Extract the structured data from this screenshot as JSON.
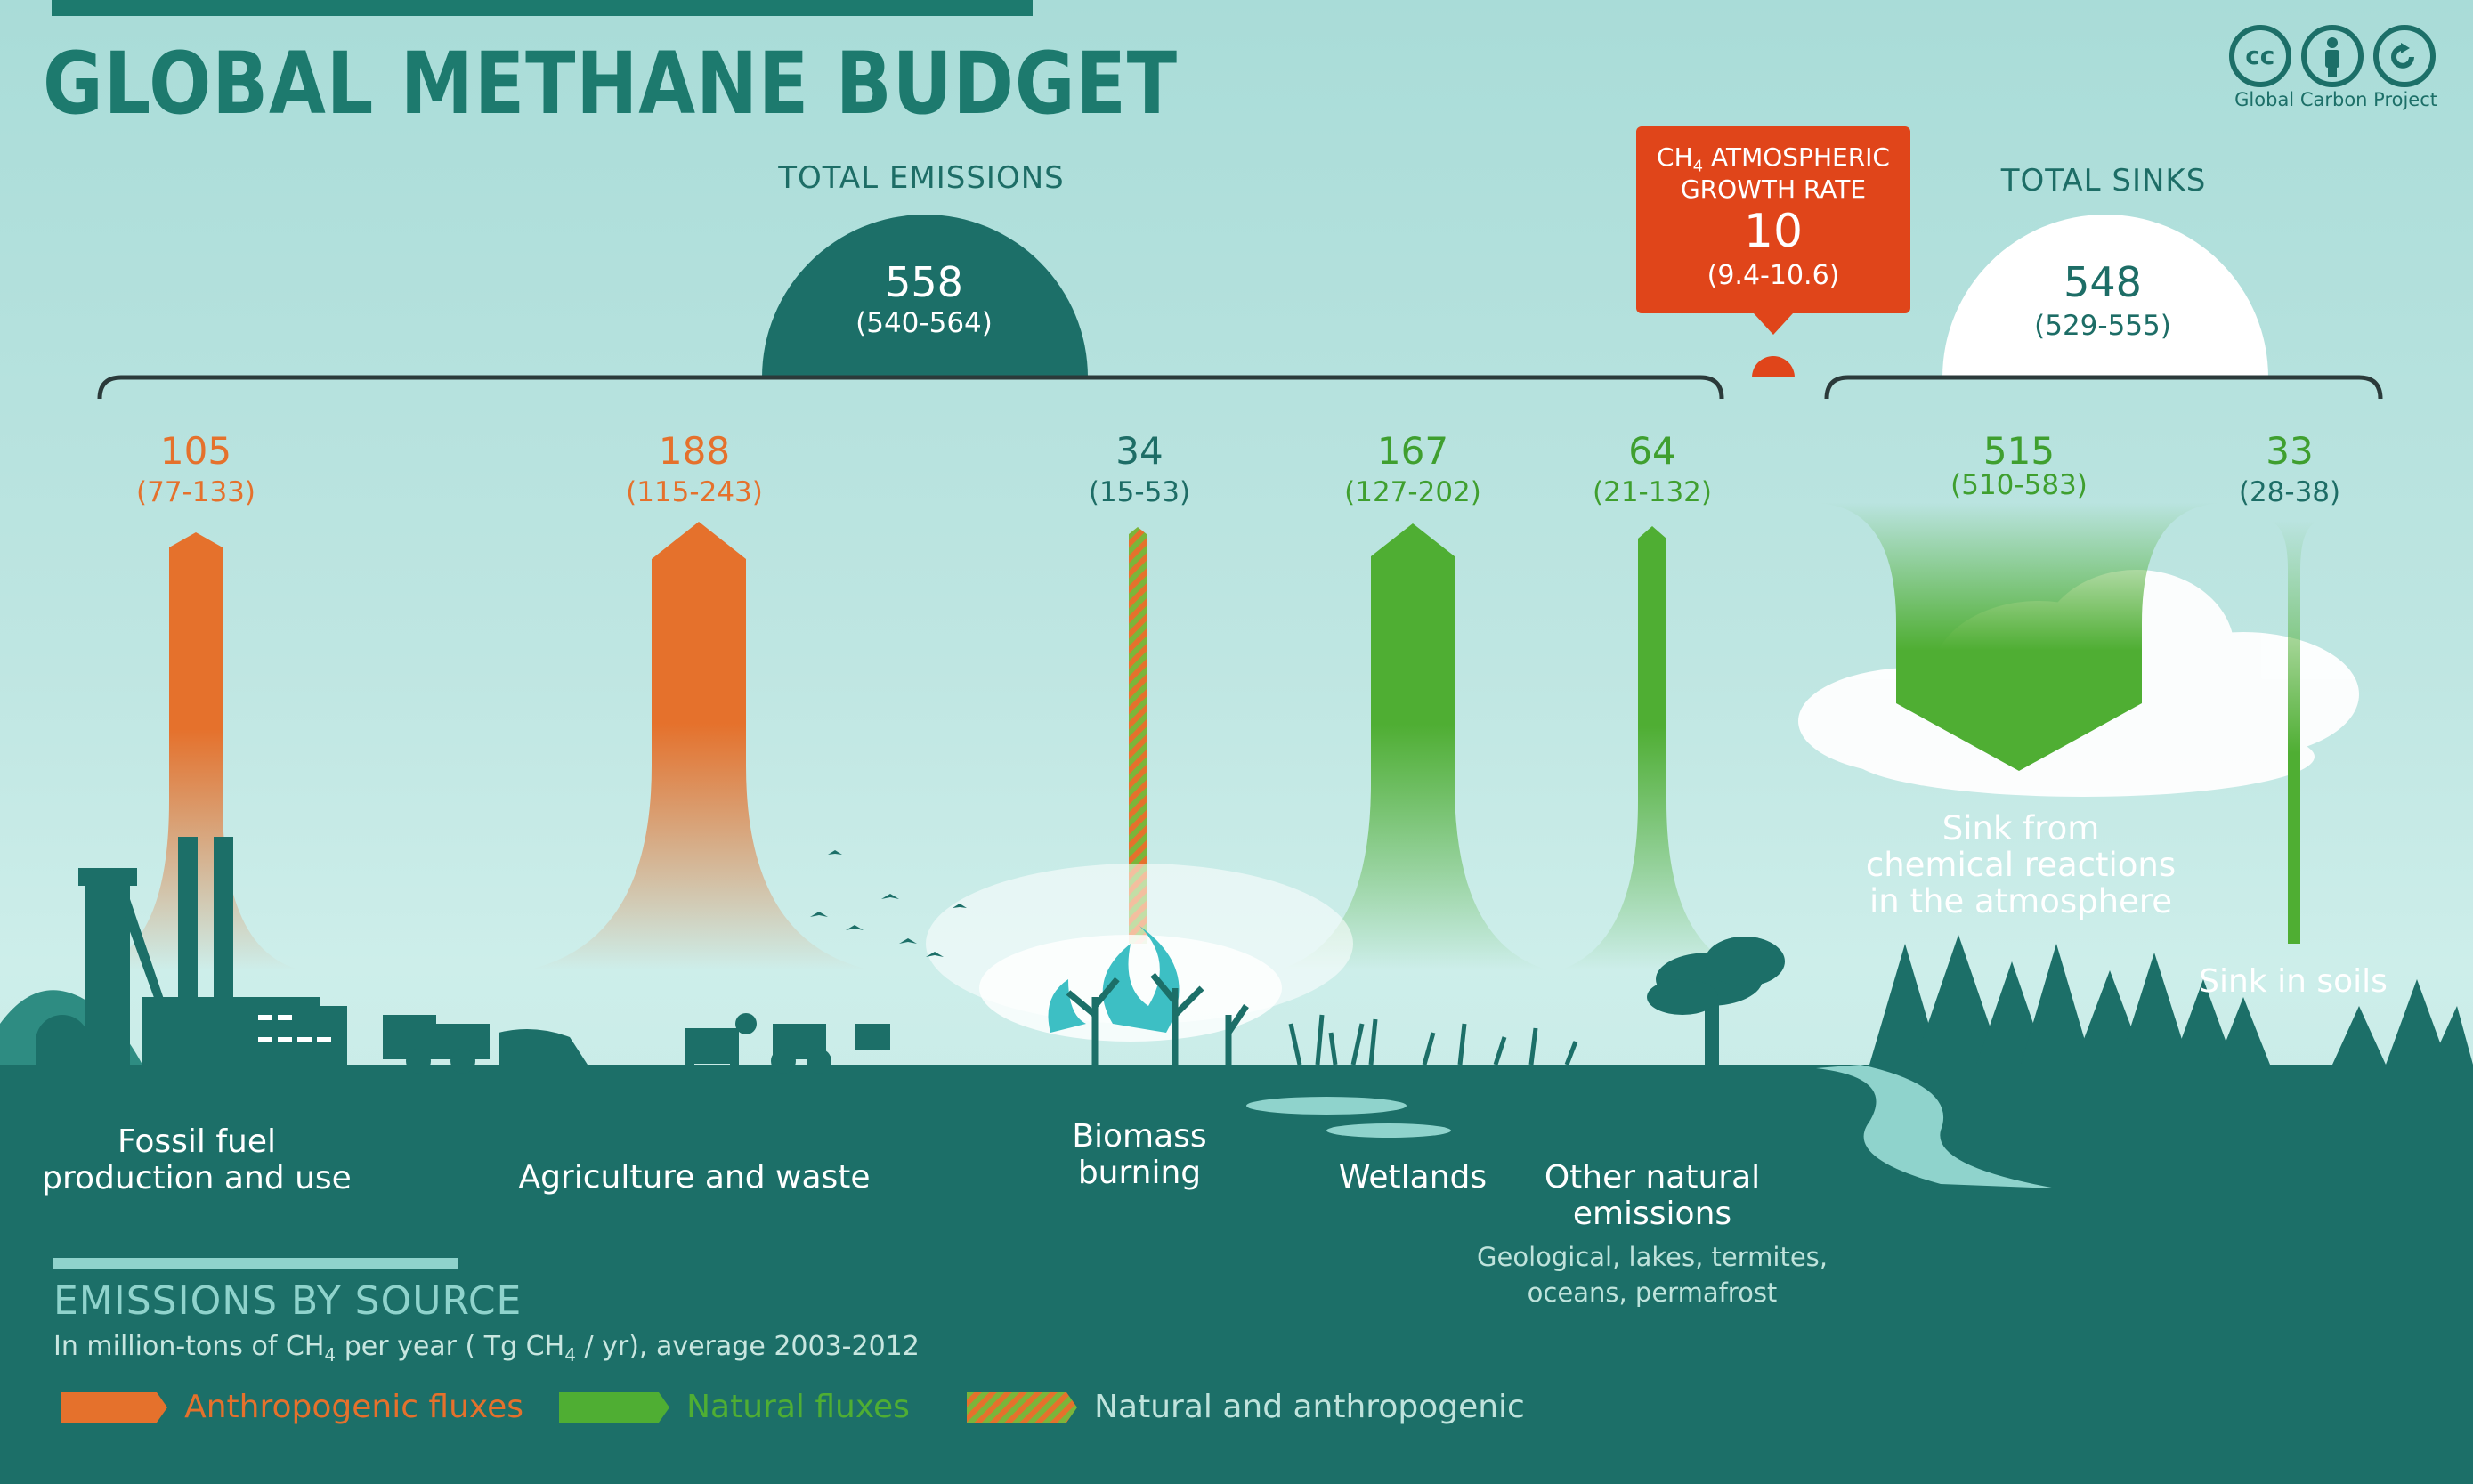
{
  "title": "GLOBAL METHANE BUDGET",
  "attribution": "Global Carbon Project",
  "icons": [
    "cc-icon",
    "by-icon",
    "sa-icon"
  ],
  "colors": {
    "anthropogenic": "#e5712c",
    "natural": "#4fae33",
    "growth": "#e0451a",
    "teal": "#1d6d66",
    "ground": "#1c6f68"
  },
  "total_emissions": {
    "label": "TOTAL EMISSIONS",
    "value": "558",
    "range": "(540-564)"
  },
  "total_sinks": {
    "label": "TOTAL SINKS",
    "value": "548",
    "range": "(529-555)"
  },
  "growth_rate": {
    "label_line1": "CH4 ATMOSPHERIC",
    "label_line2": "GROWTH RATE",
    "value": "10",
    "range": "(9.4-10.6)"
  },
  "sources": [
    {
      "value": "105",
      "range": "(77-133)",
      "label_line1": "Fossil fuel",
      "label_line2": "production and use",
      "type": "anthropogenic"
    },
    {
      "value": "188",
      "range": "(115-243)",
      "label_line1": "Agriculture and waste",
      "label_line2": "",
      "type": "anthropogenic"
    },
    {
      "value": "34",
      "range": "(15-53)",
      "label_line1": "Biomass",
      "label_line2": "burning",
      "type": "mixed"
    },
    {
      "value": "167",
      "range": "(127-202)",
      "label_line1": "Wetlands",
      "label_line2": "",
      "type": "natural"
    },
    {
      "value": "64",
      "range": "(21-132)",
      "label_line1": "Other natural",
      "label_line2": "emissions",
      "sub_line1": "Geological, lakes, termites,",
      "sub_line2": "oceans, permafrost",
      "type": "natural"
    }
  ],
  "sinks": [
    {
      "value": "515",
      "range": "(510-583)",
      "label_line1": "Sink from",
      "label_line2": "chemical reactions",
      "label_line3": "in the atmosphere"
    },
    {
      "value": "33",
      "range": "(28-38)",
      "label_line1": "Sink in soils"
    }
  ],
  "legend": {
    "title": "EMISSIONS BY SOURCE",
    "note_prefix": "In million-tons of CH",
    "note_mid": " per year ( Tg CH",
    "note_suffix": " / yr), average 2003-2012",
    "subscript": "4",
    "items": [
      {
        "label": "Anthropogenic fluxes",
        "type": "anthropogenic"
      },
      {
        "label": "Natural fluxes",
        "type": "natural"
      },
      {
        "label": "Natural and anthropogenic",
        "type": "mixed"
      }
    ]
  }
}
